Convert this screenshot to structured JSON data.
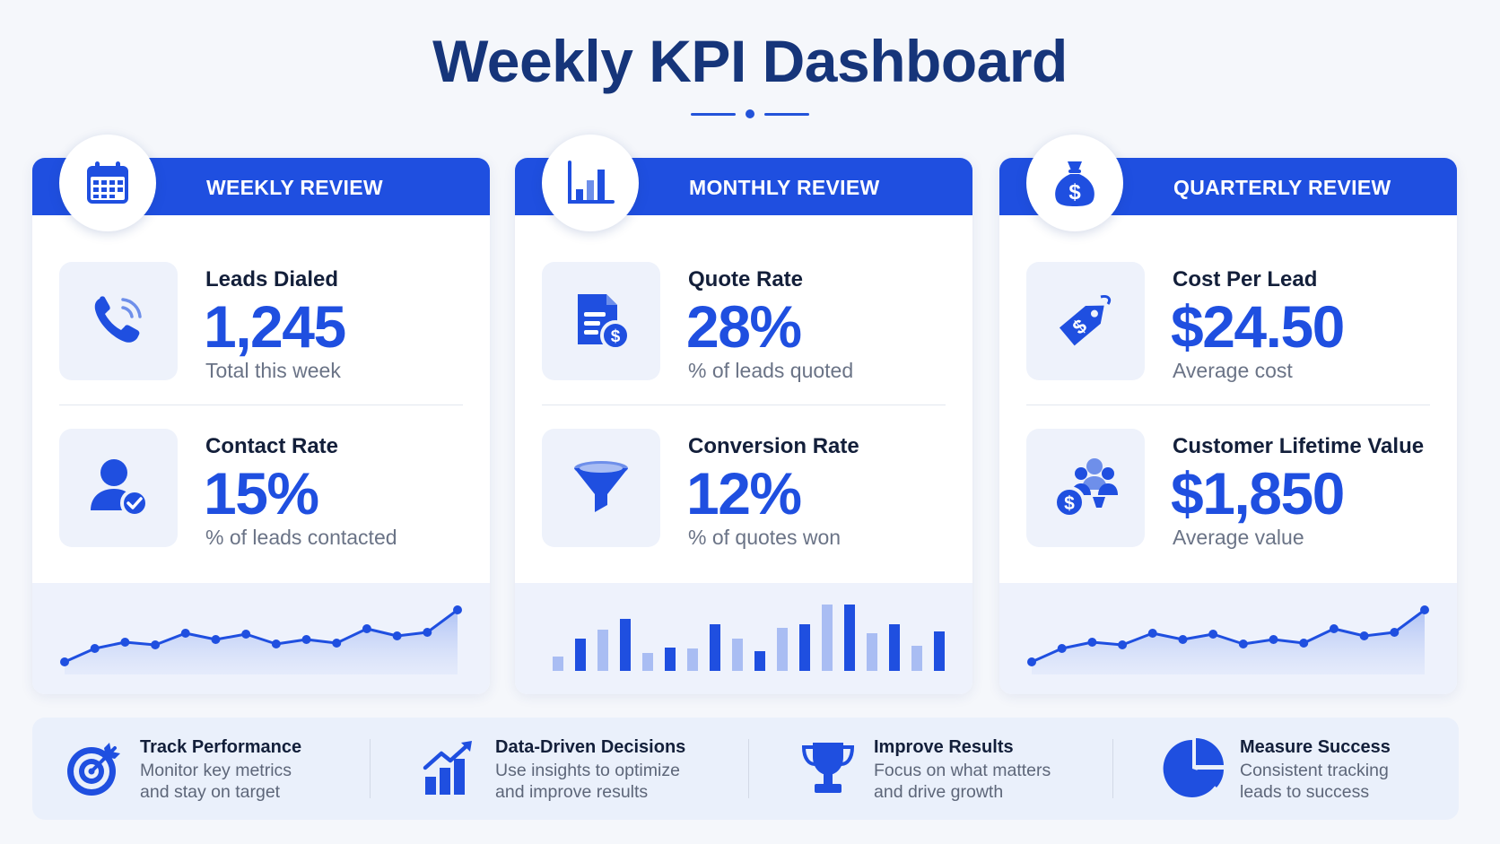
{
  "title": "Weekly KPI Dashboard",
  "colors": {
    "accent": "#1f4fe0",
    "title": "#16357a",
    "light": "#eef2fb"
  },
  "cards": [
    {
      "header": "WEEKLY REVIEW",
      "badge_icon": "calendar-icon",
      "kpis": [
        {
          "label": "Leads Dialed",
          "value": "1,245",
          "sub": "Total this week",
          "icon": "phone-icon"
        },
        {
          "label": "Contact Rate",
          "value": "15%",
          "sub": "% of leads contacted",
          "icon": "user-check-icon"
        }
      ],
      "chart": {
        "type": "line",
        "values": [
          12,
          27,
          34,
          31,
          44,
          37,
          43,
          32,
          37,
          33,
          49,
          41,
          45,
          70
        ]
      }
    },
    {
      "header": "MONTHLY REVIEW",
      "badge_icon": "bar-chart-icon",
      "kpis": [
        {
          "label": "Quote Rate",
          "value": "28%",
          "sub": "% of leads quoted",
          "icon": "invoice-dollar-icon"
        },
        {
          "label": "Conversion Rate",
          "value": "12%",
          "sub": "% of quotes won",
          "icon": "funnel-icon"
        }
      ],
      "chart": {
        "type": "bar",
        "series": [
          {
            "shade": "light",
            "values": [
              16,
              46,
              20,
              25,
              36,
              48,
              74,
              42,
              28
            ]
          },
          {
            "shade": "dark",
            "values": [
              36,
              58,
              26,
              52,
              22,
              52,
              74,
              52,
              44
            ]
          }
        ]
      }
    },
    {
      "header": "QUARTERLY REVIEW",
      "badge_icon": "money-bag-icon",
      "kpis": [
        {
          "label": "Cost Per Lead",
          "value": "$24.50",
          "sub": "Average cost",
          "icon": "price-tag-icon"
        },
        {
          "label": "Customer Lifetime Value",
          "value": "$1,850",
          "sub": "Average value",
          "icon": "customers-dollar-icon"
        }
      ],
      "chart": {
        "type": "line",
        "values": [
          12,
          27,
          34,
          31,
          44,
          37,
          43,
          32,
          37,
          33,
          49,
          41,
          45,
          70
        ]
      }
    }
  ],
  "features": [
    {
      "title": "Track Performance",
      "line1": "Monitor key metrics",
      "line2": "and stay on target",
      "icon": "target-icon"
    },
    {
      "title": "Data-Driven Decisions",
      "line1": "Use insights to optimize",
      "line2": "and improve results",
      "icon": "growth-chart-icon"
    },
    {
      "title": "Improve Results",
      "line1": "Focus on what matters",
      "line2": "and drive growth",
      "icon": "trophy-icon"
    },
    {
      "title": "Measure Success",
      "line1": "Consistent tracking",
      "line2": "leads to success",
      "icon": "pie-chart-icon"
    }
  ]
}
